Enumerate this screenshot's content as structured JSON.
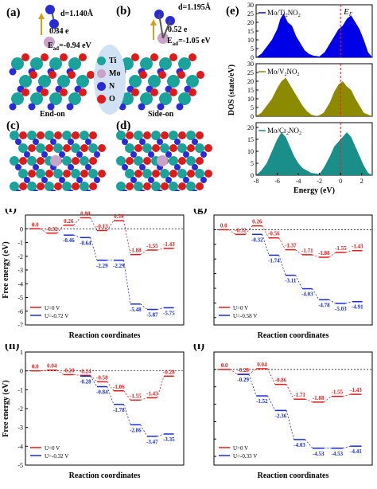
{
  "top_row": {
    "a": {
      "label": "(a)",
      "distance": "d=1.140Å",
      "charge": "0.34 e",
      "energy": "E",
      "energy_sub": "ad",
      "energy_val": "=-0.94 eV",
      "caption": "End-on"
    },
    "b": {
      "label": "(b)",
      "distance": "d=1.195Å",
      "charge": "0.52 e",
      "energy": "E",
      "energy_sub": "ad",
      "energy_val": "=-1.05 eV",
      "caption": "Side-on"
    },
    "c": {
      "label": "(c)"
    },
    "d": {
      "label": "(d)"
    },
    "legend": [
      {
        "name": "Ti",
        "color": "#1aa39a"
      },
      {
        "name": "Mo",
        "color": "#c9a3c8"
      },
      {
        "name": "N",
        "color": "#2b2bd6"
      },
      {
        "name": "O",
        "color": "#e01a1a"
      }
    ]
  },
  "panel_e": {
    "label": "(e)",
    "ylabel": "DOS (state/eV)",
    "xlabel": "Energy (eV)",
    "fermi": "E",
    "fermi_sub": "F",
    "subplots": [
      {
        "name": "Mo/Ti",
        "sub": "2",
        "tail": "NO",
        "tail_sub": "2",
        "color": "#0000e6"
      },
      {
        "name": "Mo/V",
        "sub": "2",
        "tail": "NO",
        "tail_sub": "2",
        "color": "#8c8a00"
      },
      {
        "name": "Mo/Cr",
        "sub": "2",
        "tail": "NO",
        "tail_sub": "2",
        "color": "#1a8f8a"
      }
    ],
    "yticks_top": [
      "0",
      "5",
      "10",
      "15",
      "20",
      "25",
      "30"
    ],
    "yticks_mid": [
      "0",
      "5",
      "10",
      "15",
      "20",
      "25",
      "30"
    ],
    "yticks_bot": [
      "0",
      "5",
      "10",
      "15",
      "20"
    ],
    "xticks": [
      "-8",
      "-6",
      "-4",
      "-2",
      "0",
      "2"
    ]
  },
  "energy_panels": [
    {
      "label": "(f)",
      "ylabel": "Free energy (eV)",
      "xlabel": "Reaction coordinates",
      "yticks": [
        "0",
        "-1",
        "-2",
        "-3",
        "-4",
        "-5",
        "-6",
        "-7"
      ],
      "red": [
        "0.0",
        "-0.32",
        "0.26",
        "0.80",
        "-0.13",
        "0.59",
        "-1.88",
        "-1.55",
        "-1.43"
      ],
      "blue": [
        "-0.46",
        "-0.64",
        "-2.29",
        "-2.29",
        "-5.48",
        "-5.87",
        "-5.75"
      ],
      "legend_red": "U=0 V",
      "legend_blue": "U=-0.72 V"
    },
    {
      "label": "(g)",
      "ylabel": "",
      "xlabel": "Reaction coordinates",
      "yticks": [],
      "red": [
        "0.0",
        "-0.32",
        "0.26",
        "-0.56",
        "-1.37",
        "-1.71",
        "-1.88",
        "-1.55",
        "-1.43"
      ],
      "blue": [
        "-0.32",
        "-1.74",
        "-3.11",
        "-4.03",
        "-4.78",
        "-5.03",
        "-4.91"
      ],
      "legend_red": "U=0 V",
      "legend_blue": "U=-0.58 V"
    },
    {
      "label": "(h)",
      "ylabel": "Free energy (eV)",
      "xlabel": "Reaction coordinates",
      "yticks": [
        "1",
        "0",
        "-1",
        "-2",
        "-3",
        "-4",
        "-5"
      ],
      "red": [
        "0.0",
        "0.04",
        "-0.20",
        "-0.24",
        "-0.58",
        "-1.06",
        "-1.55",
        "-1.43",
        "-0.28"
      ],
      "blue": [
        "-0.28",
        "-0.84",
        "-1.78",
        "-2.86",
        "-3.47",
        "-3.35"
      ],
      "legend_red": "U=0 V",
      "legend_blue": "U=-0.32 V"
    },
    {
      "label": "(i)",
      "ylabel": "",
      "xlabel": "Reaction coordinates",
      "yticks": [],
      "red": [
        "0.0",
        "-0.28",
        "0.04",
        "-0.86",
        "-1.71",
        "-1.88",
        "-1.55",
        "-1.43"
      ],
      "blue": [
        "-0.29",
        "-1.52",
        "-2.36",
        "-4.03",
        "-4.53",
        "-4.53",
        "-4.41"
      ],
      "legend_red": "U=0 V",
      "legend_blue": "U=-0.33 V"
    }
  ]
}
